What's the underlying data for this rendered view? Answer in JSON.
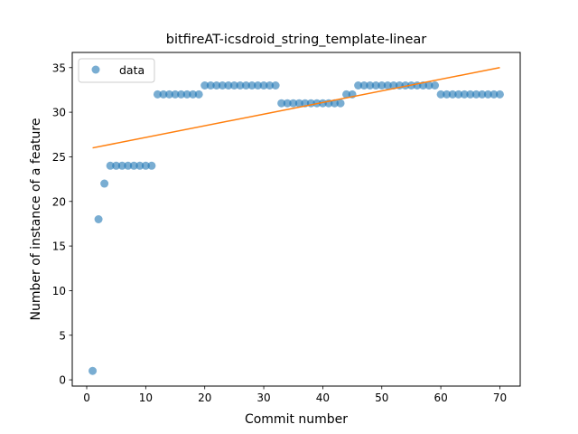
{
  "chart_data": {
    "type": "scatter",
    "title": "bitfireAT-icsdroid_string_template-linear",
    "xlabel": "Commit number",
    "ylabel": "Number of instance of a feature",
    "xlim": [
      -2.45,
      73.45
    ],
    "ylim": [
      -0.7,
      36.7
    ],
    "xticks": [
      0,
      10,
      20,
      30,
      40,
      50,
      60,
      70
    ],
    "yticks": [
      0,
      5,
      10,
      15,
      20,
      25,
      30,
      35
    ],
    "grid": false,
    "legend_position": "upper-left",
    "series": [
      {
        "name": "data",
        "kind": "markers",
        "color": "#1f77b4",
        "x": [
          1,
          2,
          3,
          4,
          5,
          6,
          7,
          8,
          9,
          10,
          11,
          12,
          13,
          14,
          15,
          16,
          17,
          18,
          19,
          20,
          21,
          22,
          23,
          24,
          25,
          26,
          27,
          28,
          29,
          30,
          31,
          32,
          33,
          34,
          35,
          36,
          37,
          38,
          39,
          40,
          41,
          42,
          43,
          44,
          45,
          46,
          47,
          48,
          49,
          50,
          51,
          52,
          53,
          54,
          55,
          56,
          57,
          58,
          59,
          60,
          61,
          62,
          63,
          64,
          65,
          66,
          67,
          68,
          69,
          70
        ],
        "y": [
          1,
          18,
          22,
          24,
          24,
          24,
          24,
          24,
          24,
          24,
          24,
          32,
          32,
          32,
          32,
          32,
          32,
          32,
          32,
          33,
          33,
          33,
          33,
          33,
          33,
          33,
          33,
          33,
          33,
          33,
          33,
          33,
          31,
          31,
          31,
          31,
          31,
          31,
          31,
          31,
          31,
          31,
          31,
          32,
          32,
          33,
          33,
          33,
          33,
          33,
          33,
          33,
          33,
          33,
          33,
          33,
          33,
          33,
          33,
          32,
          32,
          32,
          32,
          32,
          32,
          32,
          32,
          32,
          32,
          32
        ]
      },
      {
        "name": "",
        "kind": "line",
        "color": "#ff7f0e",
        "x": [
          1,
          70
        ],
        "y": [
          26.0,
          35.0
        ]
      }
    ]
  }
}
